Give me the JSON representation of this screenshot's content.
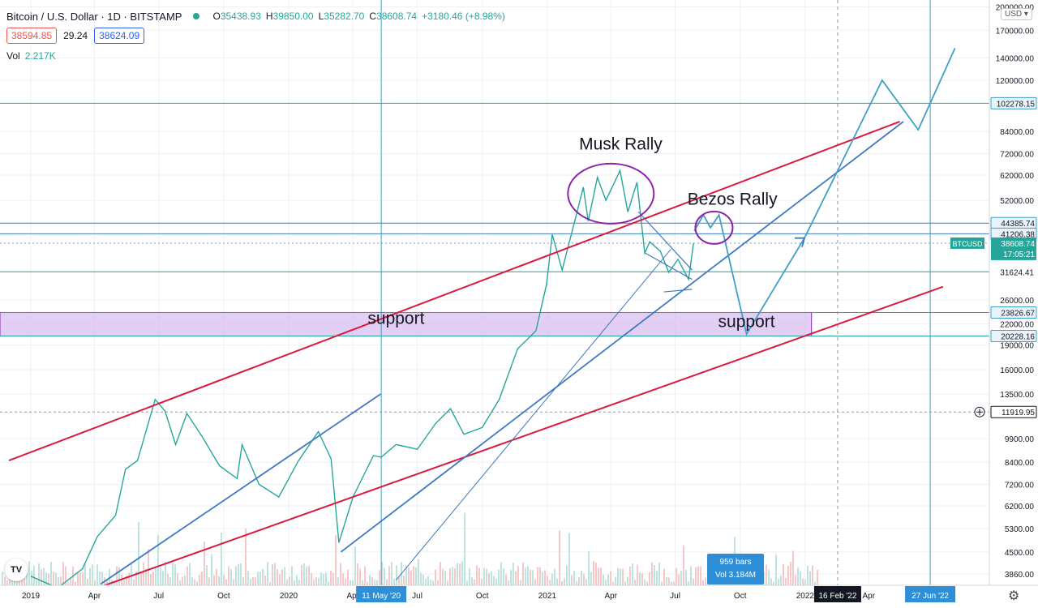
{
  "header": {
    "title": "Bitcoin / U.S. Dollar · 1D · BITSTAMP",
    "ohlc": [
      {
        "k": "O",
        "v": "35438.93"
      },
      {
        "k": "H",
        "v": "39850.00"
      },
      {
        "k": "L",
        "v": "35282.70"
      },
      {
        "k": "C",
        "v": "38608.74"
      }
    ],
    "change": "+3180.46 (+8.98%)"
  },
  "quote": {
    "bid": "38594.85",
    "spread": "29.24",
    "ask": "38624.09"
  },
  "volume": {
    "label": "Vol",
    "value": "2.217K"
  },
  "currency": "USD",
  "colors": {
    "up": "#26a69a",
    "down": "#ef5350",
    "channel": "#d81b3f",
    "trend": "#3f7ac2",
    "ellipse": "#8e24aa",
    "support_zone": "#d9bdf0",
    "hline": "#26a69a"
  },
  "chart_data": {
    "type": "line",
    "series": [
      {
        "values": [
          [
            "2019-01-01",
            3800
          ],
          [
            "2019-02-08",
            3500
          ],
          [
            "2019-03-15",
            4000
          ],
          [
            "2019-04-05",
            5000
          ],
          [
            "2019-05-01",
            5800
          ],
          [
            "2019-05-15",
            8000
          ],
          [
            "2019-06-01",
            8500
          ],
          [
            "2019-06-26",
            13000
          ],
          [
            "2019-07-10",
            12000
          ],
          [
            "2019-07-25",
            9500
          ],
          [
            "2019-08-10",
            11800
          ],
          [
            "2019-09-01",
            10000
          ],
          [
            "2019-09-25",
            8200
          ],
          [
            "2019-10-20",
            7500
          ],
          [
            "2019-10-27",
            9500
          ],
          [
            "2019-11-20",
            7200
          ],
          [
            "2019-12-18",
            6600
          ],
          [
            "2020-01-15",
            8500
          ],
          [
            "2020-02-12",
            10400
          ],
          [
            "2020-03-01",
            8600
          ],
          [
            "2020-03-12",
            4800
          ],
          [
            "2020-04-01",
            6600
          ],
          [
            "2020-04-30",
            8800
          ],
          [
            "2020-05-11",
            8700
          ],
          [
            "2020-06-01",
            9500
          ],
          [
            "2020-07-01",
            9200
          ],
          [
            "2020-07-27",
            11000
          ],
          [
            "2020-08-17",
            12200
          ],
          [
            "2020-09-05",
            10200
          ],
          [
            "2020-10-01",
            10700
          ],
          [
            "2020-10-25",
            13000
          ],
          [
            "2020-11-20",
            18500
          ],
          [
            "2020-12-01",
            19500
          ],
          [
            "2020-12-16",
            21000
          ],
          [
            "2020-12-31",
            29000
          ],
          [
            "2021-01-08",
            41000
          ],
          [
            "2021-01-22",
            32000
          ],
          [
            "2021-02-10",
            46000
          ],
          [
            "2021-02-21",
            57000
          ],
          [
            "2021-02-28",
            45000
          ],
          [
            "2021-03-13",
            61000
          ],
          [
            "2021-03-25",
            52000
          ],
          [
            "2021-04-14",
            64000
          ],
          [
            "2021-04-25",
            48000
          ],
          [
            "2021-05-08",
            59000
          ],
          [
            "2021-05-19",
            36000
          ],
          [
            "2021-05-26",
            39000
          ],
          [
            "2021-06-10",
            36500
          ],
          [
            "2021-06-22",
            31500
          ],
          [
            "2021-07-05",
            34500
          ],
          [
            "2021-07-20",
            30000
          ],
          [
            "2021-07-27",
            38608
          ]
        ]
      }
    ],
    "projection": [
      [
        "2021-07-28",
        42000
      ],
      [
        "2021-08-10",
        47000
      ],
      [
        "2021-08-20",
        43000
      ],
      [
        "2021-09-01",
        47000
      ],
      [
        "2021-10-10",
        20500
      ],
      [
        "2021-12-31",
        40000
      ],
      [
        "2022-04-20",
        120000
      ],
      [
        "2022-06-10",
        85000
      ],
      [
        "2022-08-01",
        150000
      ]
    ],
    "channel_lines": [
      [
        [
          "2018-12-01",
          8500
        ],
        [
          "2022-05-15",
          90000
        ]
      ],
      [
        [
          "2019-04-05",
          3500
        ],
        [
          "2022-07-15",
          28500
        ]
      ]
    ],
    "trend_lines": [
      [
        [
          "2019-04-10",
          3600
        ],
        [
          "2020-05-10",
          13500
        ]
      ],
      [
        [
          "2020-03-15",
          4500
        ],
        [
          "2022-05-20",
          90000
        ]
      ],
      [
        [
          "2020-06-01",
          3700
        ],
        [
          "2021-06-25",
          37000
        ]
      ]
    ],
    "wedge_lines": [
      [
        [
          "2021-05-10",
          48000
        ],
        [
          "2021-07-25",
          32000
        ]
      ],
      [
        [
          "2021-05-20",
          36000
        ],
        [
          "2021-07-25",
          30000
        ]
      ],
      [
        [
          "2021-06-15",
          27500
        ],
        [
          "2021-07-25",
          28000
        ]
      ]
    ],
    "horizontal_levels": [
      102278.15,
      44385.74,
      41206.38,
      31624.41,
      23826.67,
      20228.16,
      11919.95
    ],
    "support_zone": {
      "from": "2018-12-20",
      "to": "2022-01-10",
      "low": 20228.16,
      "high": 23826.67
    },
    "annotations": [
      {
        "text": "Musk Rally",
        "date": "2021-04-15",
        "value": 74000
      },
      {
        "text": "Bezos Rally",
        "date": "2021-09-20",
        "value": 50500
      },
      {
        "text": "support",
        "date": "2020-06-01",
        "value": 22000
      },
      {
        "text": "support",
        "date": "2021-10-10",
        "value": 21500
      }
    ],
    "ellipses": [
      {
        "date": "2021-04-01",
        "value": 54500
      },
      {
        "date": "2021-08-25",
        "value": 43000
      }
    ],
    "vertical_markers": [
      {
        "date": "2020-05-11",
        "label": "11 May '20"
      },
      {
        "date": "2022-02-16",
        "label": "16 Feb '22"
      },
      {
        "date": "2022-06-27",
        "label": "27 Jun '22"
      }
    ],
    "x_ticks": [
      "2019",
      "Apr",
      "Jul",
      "Oct",
      "2020",
      "Apr",
      "Jul",
      "Oct",
      "2021",
      "Apr",
      "Jul",
      "Oct",
      "2022",
      "Apr"
    ],
    "x_tick_dates": [
      "2019-01-01",
      "2019-04-01",
      "2019-07-01",
      "2019-10-01",
      "2020-01-01",
      "2020-04-01",
      "2020-07-01",
      "2020-10-01",
      "2021-01-01",
      "2021-04-01",
      "2021-07-01",
      "2021-10-01",
      "2022-01-01",
      "2022-04-01"
    ],
    "y_ticks": [
      200000,
      170000,
      140000,
      120000,
      84000,
      72000,
      62000,
      52000,
      31624.41,
      26000,
      22000,
      19000,
      16000,
      13500,
      9900,
      8400,
      7200,
      6200,
      5300,
      4500,
      3860
    ],
    "y_tick_labels": [
      "200000.00",
      "170000.00",
      "140000.00",
      "120000.00",
      "84000.00",
      "72000.00",
      "62000.00",
      "52000.00",
      "31624.41",
      "26000.00",
      "22000.00",
      "19000.00",
      "16000.00",
      "13500.00",
      "9900.00",
      "8400.00",
      "7200.00",
      "6200.00",
      "5300.00",
      "4500.00",
      "3860.00"
    ],
    "price_labels": [
      {
        "value": 102278.15,
        "text": "102278.15"
      },
      {
        "value": 44385.74,
        "text": "44385.74"
      },
      {
        "value": 41206.38,
        "text": "41206.38"
      },
      {
        "value": 23826.67,
        "text": "23826.67"
      },
      {
        "value": 20228.16,
        "text": "20228.16"
      },
      {
        "value": 11919.95,
        "text": "11919.95"
      }
    ],
    "last_price": {
      "symbol": "BTCUSD",
      "value": "38608.74",
      "countdown": "17:05:21"
    },
    "ylim": [
      3400,
      210000
    ],
    "log_scale": true,
    "grid": true,
    "bars_info": {
      "bars": "959 bars",
      "vol": "Vol 3.184M"
    }
  }
}
